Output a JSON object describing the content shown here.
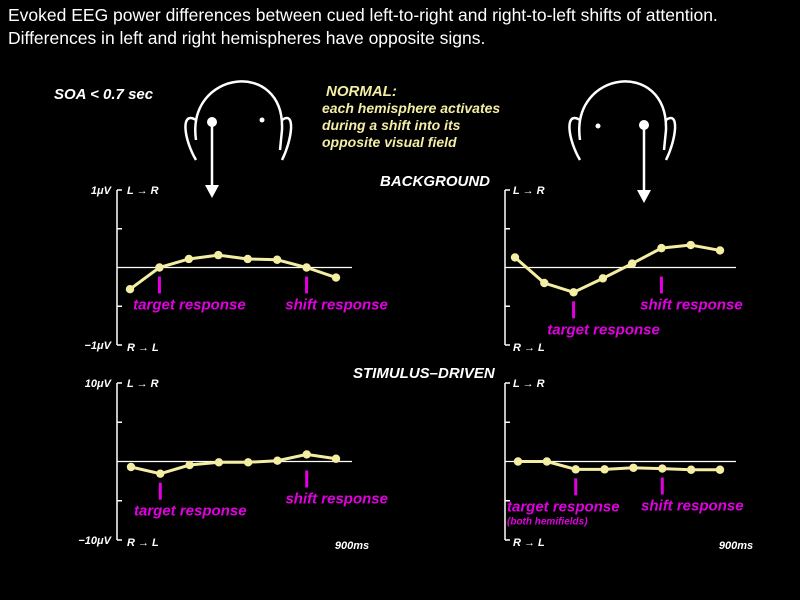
{
  "title": "Evoked EEG power differences between cued left-to-right and right-to-left shifts of attention.  Differences in left and right hemispheres have opposite signs.",
  "soa_label": "SOA < 0.7 sec",
  "normal": {
    "heading": "NORMAL:",
    "lines": [
      "each hemisphere activates",
      "during a shift into its",
      "opposite visual field"
    ]
  },
  "sections": [
    "BACKGROUND",
    "STIMULUS–DRIVEN"
  ],
  "colors": {
    "line": "#f4eea4",
    "marker": "#e000e0",
    "axis": "#ffffff",
    "text": "#ffffff"
  },
  "chart_data": [
    {
      "type": "line",
      "section": "BACKGROUND",
      "hemisphere": "left",
      "y_top_label": "1μV",
      "y_bottom_label": "−1μV",
      "top_dir": "L → R",
      "bottom_dir": "R → L",
      "x": [
        30,
        100,
        170,
        240,
        310,
        380,
        450,
        520
      ],
      "x_max_label": "",
      "values": [
        -0.28,
        0.0,
        0.11,
        0.16,
        0.11,
        0.1,
        0.0,
        -0.13
      ],
      "ylim": [
        -1,
        1
      ],
      "markers": [
        {
          "x": 100,
          "label": "target response",
          "note": ""
        },
        {
          "x": 450,
          "label": "shift response",
          "note": ""
        }
      ]
    },
    {
      "type": "line",
      "section": "BACKGROUND",
      "hemisphere": "right",
      "y_top_label": "",
      "y_bottom_label": "",
      "top_dir": "L → R",
      "bottom_dir": "R → L",
      "x": [
        30,
        100,
        170,
        240,
        310,
        380,
        450,
        520
      ],
      "x_max_label": "",
      "values": [
        0.13,
        -0.2,
        -0.32,
        -0.14,
        0.05,
        0.25,
        0.29,
        0.22
      ],
      "ylim": [
        -1,
        1
      ],
      "markers": [
        {
          "x": 170,
          "label": "target response",
          "note": ""
        },
        {
          "x": 380,
          "label": "shift response",
          "note": ""
        }
      ]
    },
    {
      "type": "line",
      "section": "STIMULUS–DRIVEN",
      "hemisphere": "left",
      "y_top_label": "10μV",
      "y_bottom_label": "−10μV",
      "top_dir": "L → R",
      "bottom_dir": "R → L",
      "x": [
        30,
        100,
        170,
        240,
        310,
        380,
        450,
        520
      ],
      "x_max_label": "900ms",
      "values": [
        -0.7,
        -1.55,
        -0.45,
        -0.1,
        -0.1,
        0.1,
        0.9,
        0.35
      ],
      "ylim": [
        -10,
        10
      ],
      "markers": [
        {
          "x": 100,
          "label": "target response",
          "note": ""
        },
        {
          "x": 450,
          "label": "shift response",
          "note": ""
        }
      ]
    },
    {
      "type": "line",
      "section": "STIMULUS–DRIVEN",
      "hemisphere": "right",
      "y_top_label": "",
      "y_bottom_label": "",
      "top_dir": "L → R",
      "bottom_dir": "R → L",
      "x": [
        30,
        100,
        170,
        240,
        310,
        380,
        450,
        520
      ],
      "x_max_label": "900ms",
      "values": [
        0.0,
        0.0,
        -1.0,
        -1.0,
        -0.8,
        -0.9,
        -1.05,
        -1.05
      ],
      "ylim": [
        -10,
        10
      ],
      "markers": [
        {
          "x": 170,
          "label": "target response",
          "note": "(both hemifields)"
        },
        {
          "x": 380,
          "label": "shift response",
          "note": ""
        }
      ]
    }
  ]
}
